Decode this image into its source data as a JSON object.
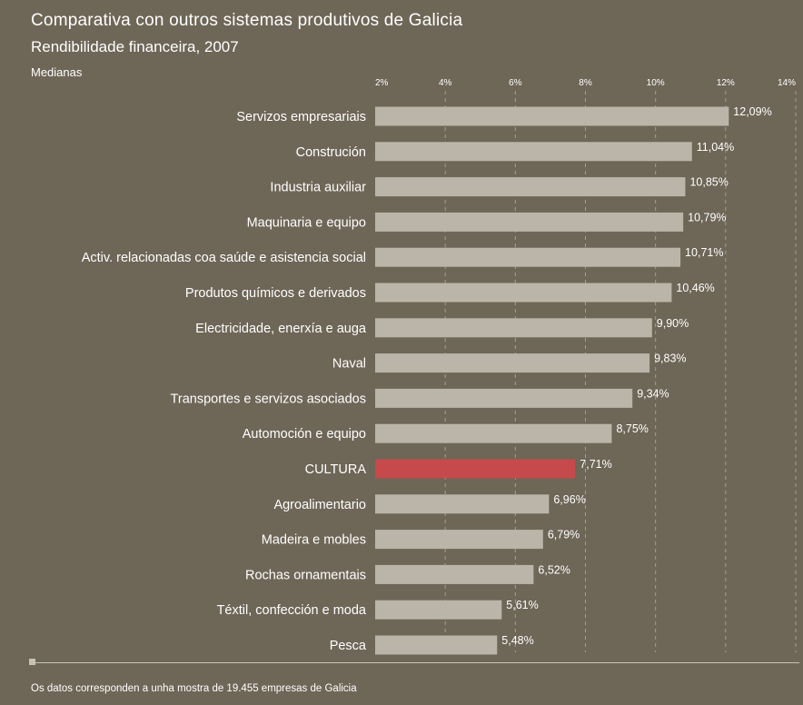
{
  "header": {
    "title": "Comparativa con outros sistemas produtivos de Galicia",
    "subtitle": "Rendibilidade financeira, 2007",
    "note": "Medianas"
  },
  "footer": {
    "text": "Os datos corresponden a unha mostra de 19.455 empresas de Galicia"
  },
  "colors": {
    "background": "#6e6657",
    "bar": "#bab5a8",
    "highlight": "#c64a4c",
    "grid": "#a59f91"
  },
  "chart_data": {
    "type": "bar",
    "orientation": "horizontal",
    "title": "Comparativa con outros sistemas produtivos de Galicia",
    "subtitle": "Rendibilidade financeira, 2007",
    "xlim": [
      2,
      14
    ],
    "ticks": [
      2,
      4,
      6,
      8,
      10,
      12,
      14
    ],
    "tick_labels": [
      "2%",
      "4%",
      "6%",
      "8%",
      "10%",
      "12%",
      "14%"
    ],
    "grid": true,
    "highlight_category": "CULTURA",
    "categories": [
      "Servizos empresariais",
      "Construción",
      "Industria auxiliar",
      "Maquinaria e equipo",
      "Activ. relacionadas coa saúde e asistencia social",
      "Produtos químicos e derivados",
      "Electricidade, enerxía e auga",
      "Naval",
      "Transportes e servizos asociados",
      "Automoción e equipo",
      "CULTURA",
      "Agroalimentario",
      "Madeira e mobles",
      "Rochas ornamentais",
      "Téxtil, confección e moda",
      "Pesca"
    ],
    "values": [
      12.09,
      11.04,
      10.85,
      10.79,
      10.71,
      10.46,
      9.9,
      9.83,
      9.34,
      8.75,
      7.71,
      6.96,
      6.79,
      6.52,
      5.61,
      5.48
    ],
    "value_labels": [
      "12,09%",
      "11,04%",
      "10,85%",
      "10,79%",
      "10,71%",
      "10,46%",
      "9,90%",
      "9,83%",
      "9,34%",
      "8,75%",
      "7,71%",
      "6,96%",
      "6,79%",
      "6,52%",
      "5,61%",
      "5,48%"
    ]
  }
}
